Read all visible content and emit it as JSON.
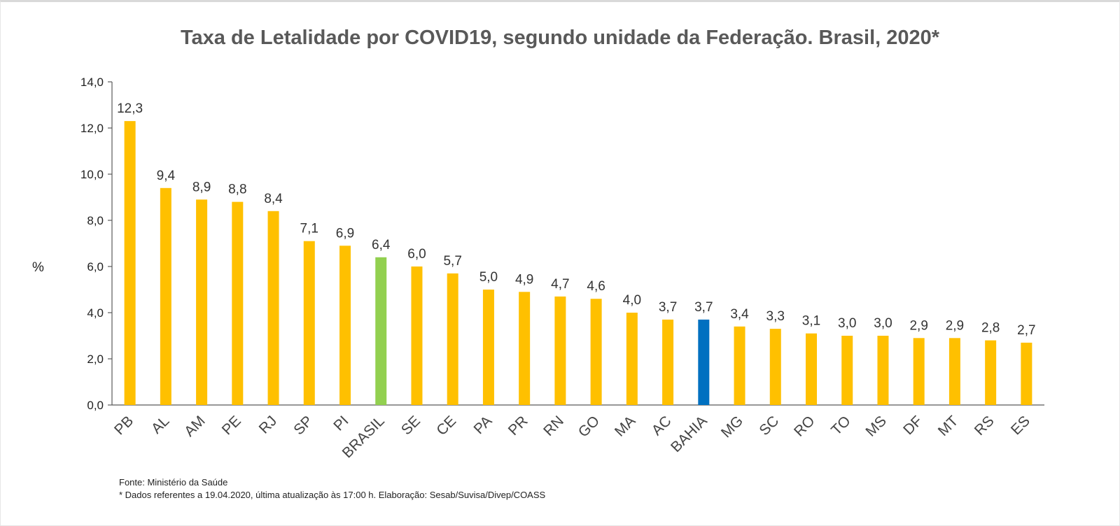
{
  "chart_data": {
    "type": "bar",
    "title": "Taxa de Letalidade por COVID19, segundo unidade da Federação. Brasil, 2020*",
    "ylabel": "%",
    "xlabel": "",
    "ylim": [
      0,
      14
    ],
    "yticks": [
      "0,0",
      "2,0",
      "4,0",
      "6,0",
      "8,0",
      "10,0",
      "12,0",
      "14,0"
    ],
    "ytick_values": [
      0,
      2,
      4,
      6,
      8,
      10,
      12,
      14
    ],
    "grid": false,
    "categories": [
      "PB",
      "AL",
      "AM",
      "PE",
      "RJ",
      "SP",
      "PI",
      "BRASIL",
      "SE",
      "CE",
      "PA",
      "PR",
      "RN",
      "GO",
      "MA",
      "AC",
      "BAHIA",
      "MG",
      "SC",
      "RO",
      "TO",
      "MS",
      "DF",
      "MT",
      "RS",
      "ES"
    ],
    "values": [
      12.3,
      9.4,
      8.9,
      8.8,
      8.4,
      7.1,
      6.9,
      6.4,
      6.0,
      5.7,
      5.0,
      4.9,
      4.7,
      4.6,
      4.0,
      3.7,
      3.7,
      3.4,
      3.3,
      3.1,
      3.0,
      3.0,
      2.9,
      2.9,
      2.8,
      2.7
    ],
    "value_labels": [
      "12,3",
      "9,4",
      "8,9",
      "8,8",
      "8,4",
      "7,1",
      "6,9",
      "6,4",
      "6,0",
      "5,7",
      "5,0",
      "4,9",
      "4,7",
      "4,6",
      "4,0",
      "3,7",
      "3,7",
      "3,4",
      "3,3",
      "3,1",
      "3,0",
      "3,0",
      "2,9",
      "2,9",
      "2,8",
      "2,7"
    ],
    "colors": {
      "default": "#FFC000",
      "BRASIL": "#92D050",
      "BAHIA": "#0070C0",
      "axis": "#595959"
    }
  },
  "footer": {
    "source": "Fonte: Ministério da Saúde",
    "note": "* Dados referentes a 19.04.2020, última atualização às 17:00 h. Elaboração: Sesab/Suvisa/Divep/COASS"
  }
}
